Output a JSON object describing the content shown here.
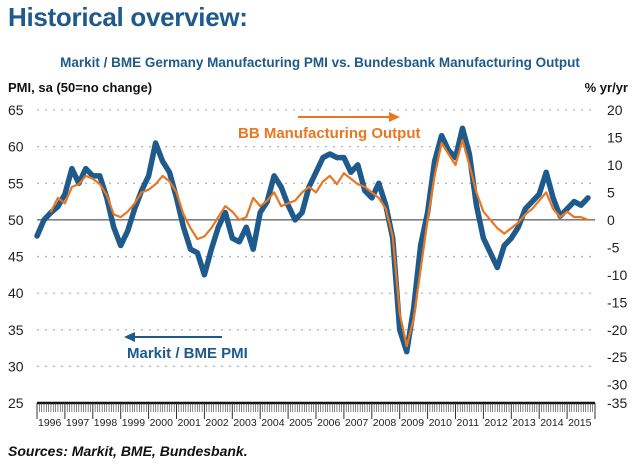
{
  "page": {
    "title": "Historical overview:",
    "source": "Sources: Markit, BME, Bundesbank."
  },
  "colors": {
    "pmi": "#1f5a8c",
    "output": "#e87722",
    "title": "#1f5a8c",
    "gridline": "#b0b0b0",
    "zero_line": "#333333"
  },
  "chart_data": {
    "type": "line",
    "title": "Markit / BME Germany Manufacturing PMI vs. Bundesbank Manufacturing Output",
    "ylabel_left": "PMI, sa (50=no change)",
    "ylabel_right": "% yr/yr",
    "xlabel": "",
    "grid": true,
    "ylim_left": [
      25,
      65
    ],
    "ylim_right": [
      -35,
      20
    ],
    "yticks_left": [
      "65",
      "60",
      "55",
      "50",
      "45",
      "40",
      "35",
      "30",
      "25"
    ],
    "yticks_right": [
      "20",
      "15",
      "10",
      "5",
      "0",
      "-5",
      "-10",
      "-15",
      "-20",
      "-25",
      "-30",
      "-35"
    ],
    "x_tick_labels": [
      "1996",
      "1997",
      "1998",
      "1999",
      "2000",
      "2001",
      "2002",
      "2003",
      "2004",
      "2005",
      "2006",
      "2007",
      "2008",
      "2009",
      "2010",
      "2011",
      "2012",
      "2013",
      "2014",
      "2015"
    ],
    "xlim": [
      1996.0,
      2016.0
    ],
    "annotations": [
      {
        "text": "BB Manufacturing Output",
        "arrow": "right",
        "series": "BB Manufacturing Output"
      },
      {
        "text": "Markit / BME PMI",
        "arrow": "left",
        "series": "Markit / BME PMI"
      }
    ],
    "series": [
      {
        "name": "Markit / BME PMI",
        "axis": "left",
        "x": [
          1996.0,
          1996.25,
          1996.5,
          1996.75,
          1997.0,
          1997.25,
          1997.5,
          1997.75,
          1998.0,
          1998.25,
          1998.5,
          1998.75,
          1999.0,
          1999.25,
          1999.5,
          1999.75,
          2000.0,
          2000.25,
          2000.5,
          2000.75,
          2001.0,
          2001.25,
          2001.5,
          2001.75,
          2002.0,
          2002.25,
          2002.5,
          2002.75,
          2003.0,
          2003.25,
          2003.5,
          2003.75,
          2004.0,
          2004.25,
          2004.5,
          2004.75,
          2005.0,
          2005.25,
          2005.5,
          2005.75,
          2006.0,
          2006.25,
          2006.5,
          2006.75,
          2007.0,
          2007.25,
          2007.5,
          2007.75,
          2008.0,
          2008.25,
          2008.5,
          2008.75,
          2009.0,
          2009.25,
          2009.5,
          2009.75,
          2010.0,
          2010.25,
          2010.5,
          2010.75,
          2011.0,
          2011.25,
          2011.5,
          2011.75,
          2012.0,
          2012.25,
          2012.5,
          2012.75,
          2013.0,
          2013.25,
          2013.5,
          2013.75,
          2014.0,
          2014.25,
          2014.5,
          2014.75,
          2015.0,
          2015.25,
          2015.5,
          2015.75
        ],
        "values": [
          47.8,
          50.0,
          51.0,
          51.8,
          53.5,
          57.0,
          55.0,
          57.0,
          56.0,
          56.0,
          53.0,
          49.0,
          46.5,
          48.5,
          51.5,
          54.0,
          56.0,
          60.5,
          58.0,
          56.5,
          53.0,
          49.0,
          46.0,
          45.5,
          42.5,
          46.0,
          49.0,
          51.0,
          47.5,
          47.0,
          49.0,
          46.0,
          51.0,
          52.5,
          56.0,
          54.5,
          52.0,
          50.0,
          51.0,
          54.5,
          56.5,
          58.5,
          59.0,
          58.5,
          58.5,
          56.5,
          57.5,
          54.0,
          53.0,
          55.0,
          52.0,
          47.5,
          35.0,
          32.0,
          38.0,
          46.5,
          51.0,
          58.0,
          61.5,
          59.5,
          58.5,
          62.5,
          59.0,
          52.0,
          47.5,
          45.5,
          43.5,
          46.5,
          47.5,
          49.0,
          51.5,
          52.5,
          53.5,
          56.5,
          53.0,
          50.5,
          51.5,
          52.5,
          52.0,
          53.0
        ]
      },
      {
        "name": "BB Manufacturing Output",
        "axis": "right",
        "x": [
          1996.5,
          1996.75,
          1997.0,
          1997.25,
          1997.5,
          1997.75,
          1998.0,
          1998.25,
          1998.5,
          1998.75,
          1999.0,
          1999.25,
          1999.5,
          1999.75,
          2000.0,
          2000.25,
          2000.5,
          2000.75,
          2001.0,
          2001.25,
          2001.5,
          2001.75,
          2002.0,
          2002.25,
          2002.5,
          2002.75,
          2003.0,
          2003.25,
          2003.5,
          2003.75,
          2004.0,
          2004.25,
          2004.5,
          2004.75,
          2005.0,
          2005.25,
          2005.5,
          2005.75,
          2006.0,
          2006.25,
          2006.5,
          2006.75,
          2007.0,
          2007.25,
          2007.5,
          2007.75,
          2008.0,
          2008.25,
          2008.5,
          2008.75,
          2009.0,
          2009.25,
          2009.5,
          2009.75,
          2010.0,
          2010.25,
          2010.5,
          2010.75,
          2011.0,
          2011.25,
          2011.5,
          2011.75,
          2012.0,
          2012.25,
          2012.5,
          2012.75,
          2013.0,
          2013.25,
          2013.5,
          2013.75,
          2014.0,
          2014.25,
          2014.5,
          2014.75,
          2015.0,
          2015.25,
          2015.5,
          2015.75
        ],
        "values": [
          1.5,
          4.0,
          3.0,
          6.0,
          6.5,
          8.0,
          7.5,
          6.5,
          4.5,
          1.0,
          0.5,
          1.5,
          3.0,
          5.0,
          5.5,
          6.5,
          8.0,
          7.0,
          5.0,
          1.0,
          -1.5,
          -3.5,
          -3.0,
          -1.5,
          0.5,
          2.5,
          1.5,
          0.0,
          0.5,
          4.0,
          2.5,
          3.5,
          5.0,
          2.5,
          3.0,
          3.5,
          5.0,
          6.0,
          5.0,
          7.0,
          8.0,
          6.5,
          8.5,
          7.5,
          6.5,
          6.0,
          5.0,
          4.0,
          2.0,
          -3.0,
          -17.0,
          -23.0,
          -18.0,
          -9.0,
          0.0,
          8.0,
          14.0,
          12.0,
          10.0,
          14.5,
          10.0,
          5.0,
          1.5,
          0.0,
          -1.5,
          -2.5,
          -1.5,
          -0.5,
          1.0,
          2.0,
          3.5,
          5.0,
          2.0,
          0.5,
          1.5,
          0.5,
          0.5,
          0.0
        ]
      }
    ]
  }
}
